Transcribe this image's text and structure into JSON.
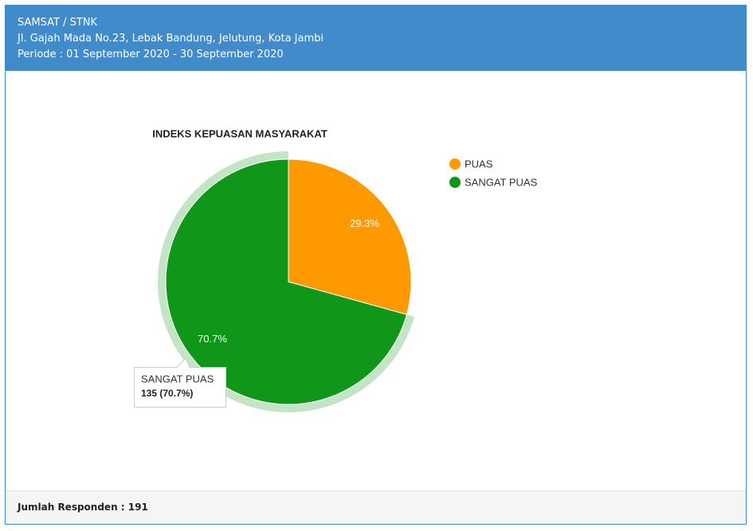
{
  "header": {
    "title": "SAMSAT / STNK",
    "address": "Jl. Gajah Mada No.23, Lebak Bandung, Jelutung, Kota Jambi",
    "period": "Periode : 01 September 2020 - 30 September 2020"
  },
  "chart_data": {
    "type": "pie",
    "title": "INDEKS KEPUASAN MASYARAKAT",
    "categories": [
      "PUAS",
      "SANGAT PUAS"
    ],
    "values": [
      29.3,
      70.7
    ],
    "value_labels": [
      "29.3%",
      "70.7%"
    ],
    "colors": [
      "#ff9900",
      "#109618"
    ],
    "legend": "right",
    "tooltip": {
      "title": "SANGAT PUAS",
      "text": "135 (70.7%)"
    }
  },
  "footer": {
    "text": "Jumlah Responden : 191"
  }
}
